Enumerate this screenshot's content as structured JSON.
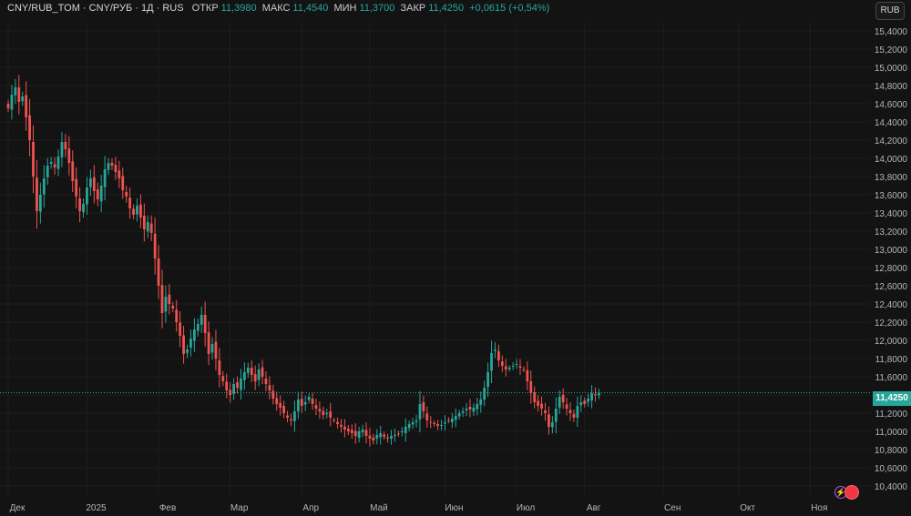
{
  "legend": {
    "title": "CNY/RUB_TOM · CNY/РУБ · 1Д · RUS",
    "open_label": "ОТКР",
    "open": "11,3980",
    "high_label": "МАКС",
    "high": "11,4540",
    "low_label": "МИН",
    "low": "11,3700",
    "close_label": "ЗАКР",
    "close": "11,4250",
    "change": "+0,0615 (+0,54%)"
  },
  "currency_button": "RUB",
  "last_price": "11,4250",
  "colors": {
    "up": "#26a69a",
    "down": "#ef5350",
    "background": "#131313",
    "grid": "#1e1e1e"
  },
  "icons": {
    "alert": "bolt-icon",
    "record": "record-icon"
  },
  "chart_data": {
    "type": "candlestick",
    "ylim": [
      10.3,
      15.5
    ],
    "y_ticks": [
      10.4,
      10.6,
      10.8,
      11.0,
      11.2,
      11.4,
      11.6,
      11.8,
      12.0,
      12.2,
      12.4,
      12.6,
      12.8,
      13.0,
      13.2,
      13.4,
      13.6,
      13.8,
      14.0,
      14.2,
      14.4,
      14.6,
      14.8,
      15.0,
      15.2,
      15.4
    ],
    "y_tick_labels": [
      "10,4000",
      "10,6000",
      "10,8000",
      "11,0000",
      "11,2000",
      "11,4000",
      "11,6000",
      "11,8000",
      "12,0000",
      "12,2000",
      "12,4000",
      "12,6000",
      "12,8000",
      "13,0000",
      "13,2000",
      "13,4000",
      "13,6000",
      "13,8000",
      "14,0000",
      "14,2000",
      "14,4000",
      "14,6000",
      "14,8000",
      "15,0000",
      "15,2000",
      "15,4000"
    ],
    "x_labels": [
      "Дек",
      "2025",
      "Фев",
      "Мар",
      "Апр",
      "Май",
      "Июн",
      "Июл",
      "Авг",
      "Сен",
      "Окт",
      "Ноя"
    ],
    "x_label_index": [
      0,
      22,
      42,
      62,
      82,
      101,
      122,
      142,
      161,
      183,
      204,
      224
    ],
    "last_close": 11.425,
    "closes": [
      14.55,
      14.7,
      14.78,
      14.62,
      14.68,
      14.45,
      14.2,
      13.8,
      13.42,
      13.6,
      13.78,
      13.92,
      13.96,
      13.9,
      14.02,
      14.18,
      14.1,
      13.95,
      13.75,
      13.58,
      13.42,
      13.5,
      13.68,
      13.78,
      13.64,
      13.55,
      13.7,
      13.88,
      13.95,
      13.92,
      13.85,
      13.78,
      13.65,
      13.58,
      13.45,
      13.38,
      13.48,
      13.35,
      13.22,
      13.3,
      13.18,
      12.9,
      12.6,
      12.3,
      12.48,
      12.4,
      12.35,
      12.2,
      12.05,
      11.85,
      11.9,
      12.02,
      12.12,
      12.18,
      12.28,
      12.08,
      11.85,
      11.96,
      11.8,
      11.62,
      11.55,
      11.45,
      11.4,
      11.52,
      11.48,
      11.58,
      11.65,
      11.7,
      11.62,
      11.55,
      11.68,
      11.6,
      11.52,
      11.45,
      11.36,
      11.3,
      11.26,
      11.2,
      11.15,
      11.12,
      11.22,
      11.35,
      11.28,
      11.32,
      11.38,
      11.3,
      11.25,
      11.22,
      11.18,
      11.2,
      11.15,
      11.12,
      11.08,
      11.05,
      11.02,
      11.0,
      10.98,
      10.95,
      11.0,
      11.02,
      10.95,
      10.92,
      10.9,
      10.96,
      10.98,
      10.94,
      10.92,
      10.95,
      10.96,
      10.97,
      11.0,
      11.05,
      11.08,
      11.1,
      11.12,
      11.3,
      11.22,
      11.12,
      11.1,
      11.08,
      11.06,
      11.07,
      11.1,
      11.12,
      11.14,
      11.17,
      11.2,
      11.22,
      11.25,
      11.24,
      11.26,
      11.3,
      11.35,
      11.48,
      11.65,
      11.86,
      11.9,
      11.78,
      11.72,
      11.68,
      11.7,
      11.72,
      11.74,
      11.7,
      11.68,
      11.55,
      11.42,
      11.32,
      11.28,
      11.25,
      11.2,
      11.05,
      11.1,
      11.25,
      11.38,
      11.32,
      11.25,
      11.2,
      11.15,
      11.28,
      11.32,
      11.3,
      11.36,
      11.42,
      11.4,
      11.425
    ]
  }
}
